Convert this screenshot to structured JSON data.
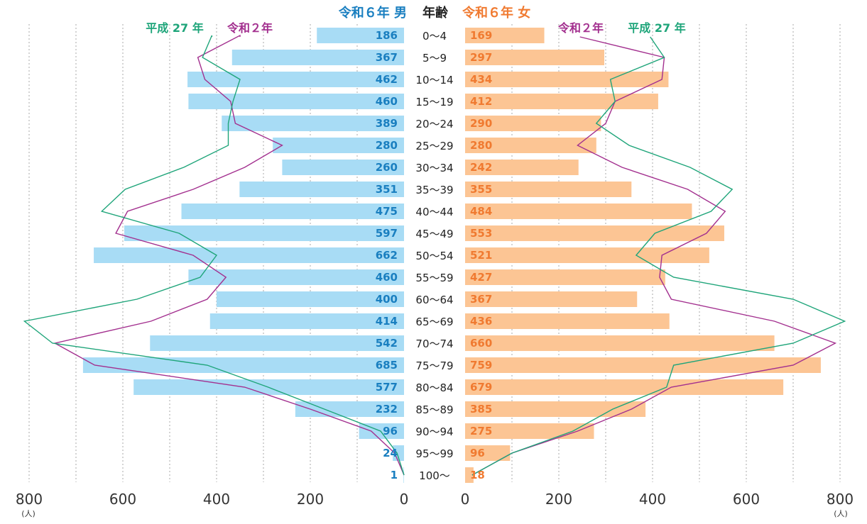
{
  "chart_data": {
    "type": "bar",
    "orientation": "population-pyramid",
    "grid": true,
    "age_header": "年齢",
    "unit": "(人)",
    "x_ticks": [
      "800",
      "600",
      "400",
      "200",
      "0"
    ],
    "xlim": [
      0,
      800
    ],
    "categories": [
      "0～4",
      "5～9",
      "10～14",
      "15～19",
      "20～24",
      "25～29",
      "30～34",
      "35～39",
      "40～44",
      "45～49",
      "50～54",
      "55～59",
      "60～64",
      "65～69",
      "70～74",
      "75～79",
      "80～84",
      "85～89",
      "90～94",
      "95～99",
      "100～"
    ],
    "male": {
      "name": "令和６年 男",
      "color": "#a8dcf5",
      "label_color": "#1a7fc0",
      "values": [
        186,
        367,
        462,
        460,
        389,
        280,
        260,
        351,
        475,
        597,
        662,
        460,
        400,
        414,
        542,
        685,
        577,
        232,
        96,
        24,
        1
      ]
    },
    "female": {
      "name": "令和６年 女",
      "color": "#fcc594",
      "label_color": "#f07a30",
      "values": [
        169,
        297,
        434,
        412,
        290,
        280,
        242,
        355,
        484,
        553,
        521,
        427,
        367,
        436,
        660,
        759,
        679,
        385,
        275,
        96,
        18
      ]
    },
    "lines": {
      "r2": {
        "name": "令和２年",
        "color": "#a3308f",
        "male": [
          350,
          440,
          425,
          370,
          360,
          260,
          340,
          450,
          590,
          615,
          450,
          380,
          420,
          540,
          745,
          660,
          340,
          200,
          70,
          20,
          0
        ],
        "female": [
          null,
          425,
          420,
          320,
          300,
          240,
          335,
          475,
          555,
          515,
          420,
          415,
          440,
          660,
          790,
          700,
          440,
          355,
          240,
          100,
          15
        ]
      },
      "h27": {
        "name": "平成 27 年",
        "color": "#1fa57a",
        "male": [
          410,
          430,
          350,
          365,
          375,
          375,
          470,
          595,
          645,
          480,
          400,
          435,
          570,
          810,
          750,
          420,
          290,
          170,
          50,
          15,
          0
        ],
        "female": [
          null,
          425,
          310,
          320,
          280,
          350,
          480,
          570,
          525,
          405,
          365,
          445,
          700,
          810,
          700,
          445,
          430,
          315,
          230,
          100,
          15
        ]
      }
    }
  }
}
